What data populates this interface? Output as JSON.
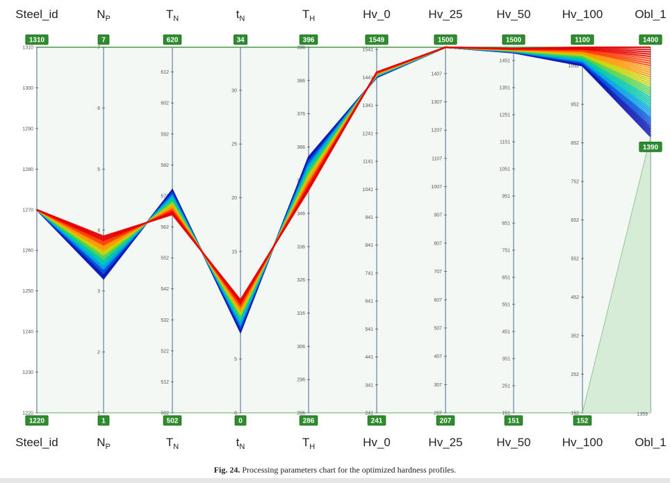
{
  "chart_data": {
    "type": "parallel-coordinates",
    "axes": [
      {
        "name": "Steel_id",
        "sub": "",
        "max_label": "1310",
        "min_label": "1220",
        "ticks": [
          "1310",
          "1300",
          "1290",
          "1280",
          "1270",
          "1260",
          "1250",
          "1240",
          "1230",
          "1220"
        ],
        "range": [
          1220,
          1310
        ]
      },
      {
        "name": "N",
        "sub": "P",
        "max_label": "7",
        "min_label": "1",
        "ticks": [
          "7",
          "6",
          "5",
          "4",
          "3",
          "2",
          "1"
        ],
        "range": [
          1,
          7
        ]
      },
      {
        "name": "T",
        "sub": "N",
        "max_label": "620",
        "min_label": "502",
        "ticks": [
          "612",
          "602",
          "592",
          "582",
          "572",
          "562",
          "552",
          "542",
          "532",
          "522",
          "512",
          "502"
        ],
        "range": [
          502,
          620
        ]
      },
      {
        "name": "t",
        "sub": "N",
        "max_label": "34",
        "min_label": "0",
        "ticks": [
          "30",
          "25",
          "20",
          "15",
          "10",
          "5",
          "0"
        ],
        "range": [
          0,
          34
        ]
      },
      {
        "name": "T",
        "sub": "H",
        "max_label": "396",
        "min_label": "286",
        "ticks": [
          "396",
          "386",
          "376",
          "366",
          "356",
          "346",
          "336",
          "326",
          "316",
          "306",
          "296",
          "286"
        ],
        "range": [
          286,
          396
        ]
      },
      {
        "name": "Hv_0",
        "sub": "",
        "max_label": "1549",
        "min_label": "241",
        "ticks": [
          "1541",
          "1441",
          "1341",
          "1241",
          "1141",
          "1041",
          "941",
          "841",
          "741",
          "641",
          "541",
          "441",
          "341",
          "241"
        ],
        "range": [
          241,
          1549
        ]
      },
      {
        "name": "Hv_25",
        "sub": "",
        "max_label": "1500",
        "min_label": "207",
        "ticks": [
          "1407",
          "1307",
          "1207",
          "1107",
          "1007",
          "907",
          "807",
          "707",
          "607",
          "507",
          "407",
          "307",
          "207"
        ],
        "range": [
          207,
          1500
        ]
      },
      {
        "name": "Hv_50",
        "sub": "",
        "max_label": "1500",
        "min_label": "151",
        "ticks": [
          "1451",
          "1351",
          "1251",
          "1151",
          "1051",
          "951",
          "851",
          "751",
          "651",
          "551",
          "451",
          "351",
          "251",
          "151"
        ],
        "range": [
          151,
          1500
        ]
      },
      {
        "name": "Hv_100",
        "sub": "",
        "max_label": "1100",
        "min_label": "152",
        "ticks": [
          "1052",
          "952",
          "852",
          "752",
          "652",
          "552",
          "452",
          "352",
          "252",
          "152"
        ],
        "range": [
          152,
          1100
        ]
      },
      {
        "name": "Obl_1",
        "sub": "",
        "max_label": "1400",
        "min_label": "1359",
        "ticks": [],
        "range": [
          1359,
          1400
        ],
        "selected_label": "1390"
      }
    ],
    "profiles": {
      "Steel_id": 1270,
      "N_P": [
        3.2,
        3.9
      ],
      "T_N": [
        566,
        574
      ],
      "t_N": [
        7.5,
        10.5
      ],
      "T_H": [
        353,
        363
      ],
      "Hv_0": [
        1441,
        1460
      ],
      "Hv_25": [
        1500,
        1500
      ],
      "Hv_50": [
        1480,
        1495
      ],
      "Hv_100": [
        1052,
        1100
      ],
      "Obl_1": [
        1390,
        1400
      ]
    },
    "selected_brush": {
      "axis": "Obl_1",
      "range": [
        1390,
        1400
      ]
    },
    "colormap": [
      "#0a14b4",
      "#0050dc",
      "#00a0e6",
      "#00c8aa",
      "#50d250",
      "#c8d200",
      "#ff9600",
      "#ff3c00",
      "#e60000"
    ],
    "title": "",
    "legend": "none"
  },
  "caption": {
    "label": "Fig. 24.",
    "text": "Processing parameters chart for the optimized hardness profiles."
  }
}
